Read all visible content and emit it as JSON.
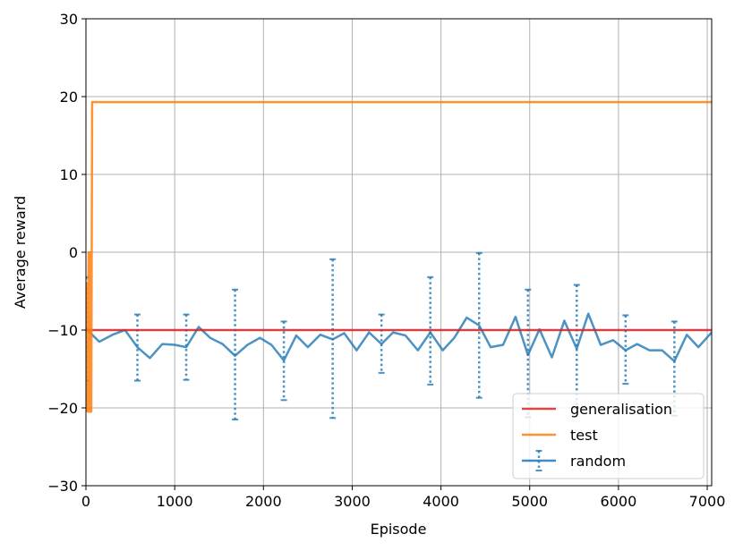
{
  "chart_data": {
    "type": "line",
    "xlabel": "Episode",
    "ylabel": "Average reward",
    "xlim": [
      0,
      7050
    ],
    "ylim": [
      -30,
      30
    ],
    "xticks": [
      0,
      1000,
      2000,
      3000,
      4000,
      5000,
      6000,
      7000
    ],
    "yticks": [
      -30,
      -20,
      -10,
      0,
      10,
      20,
      30
    ],
    "grid": true,
    "legend_position": "bottom-right",
    "series": [
      {
        "name": "generalisation",
        "color": "#d62728",
        "x": [
          0,
          7050
        ],
        "y": [
          -10,
          -10
        ]
      },
      {
        "name": "test",
        "color": "#ff7f0e",
        "x": [
          0,
          10,
          20,
          30,
          40,
          50,
          60,
          70,
          80,
          7050
        ],
        "y": [
          -20.5,
          -4,
          -20.5,
          0,
          -20.5,
          0,
          -20.5,
          19.3,
          19.3,
          19.3
        ]
      },
      {
        "name": "random",
        "color": "#1f77b4",
        "x": [
          0,
          150,
          300,
          440,
          580,
          720,
          860,
          1000,
          1130,
          1270,
          1400,
          1540,
          1680,
          1820,
          1960,
          2090,
          2230,
          2370,
          2500,
          2640,
          2780,
          2910,
          3050,
          3190,
          3330,
          3460,
          3600,
          3740,
          3880,
          4020,
          4150,
          4290,
          4430,
          4560,
          4700,
          4840,
          4980,
          5110,
          5250,
          5390,
          5530,
          5660,
          5800,
          5940,
          6080,
          6210,
          6350,
          6490,
          6630,
          6770,
          6900,
          7050
        ],
        "y": [
          -9.8,
          -11.5,
          -10.6,
          -10.0,
          -12.2,
          -13.6,
          -11.8,
          -11.9,
          -12.2,
          -9.6,
          -11.0,
          -11.8,
          -13.3,
          -11.9,
          -11.0,
          -11.9,
          -13.9,
          -10.7,
          -12.2,
          -10.6,
          -11.2,
          -10.4,
          -12.6,
          -10.3,
          -11.8,
          -10.3,
          -10.7,
          -12.6,
          -10.3,
          -12.6,
          -11.0,
          -8.4,
          -9.4,
          -12.2,
          -11.9,
          -8.3,
          -13.2,
          -9.9,
          -13.5,
          -8.8,
          -12.4,
          -7.9,
          -11.9,
          -11.3,
          -12.6,
          -11.8,
          -12.6,
          -12.6,
          -14.0,
          -10.6,
          -12.2,
          -10.3
        ]
      }
    ],
    "errorbars": {
      "series": "random",
      "x": [
        0,
        580,
        1130,
        1680,
        2230,
        2780,
        3330,
        3880,
        4430,
        4980,
        5530,
        6080,
        6630
      ],
      "upper": [
        -3.2,
        -8.0,
        -8.0,
        -4.8,
        -8.9,
        -0.9,
        -8.0,
        -3.2,
        -0.1,
        -4.8,
        -4.2,
        -8.1,
        -8.9
      ],
      "lower": [
        -16.5,
        -16.5,
        -16.4,
        -21.5,
        -19.0,
        -21.3,
        -15.5,
        -17.0,
        -18.7,
        -21.2,
        -20.0,
        -16.9,
        -21.0
      ]
    }
  }
}
